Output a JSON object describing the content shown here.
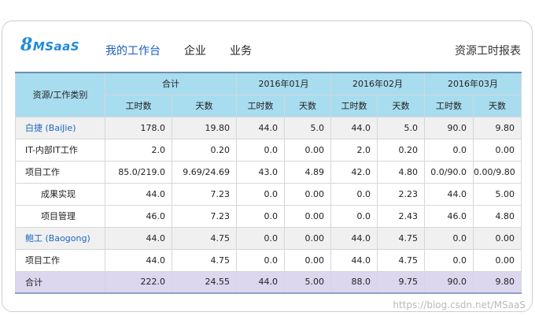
{
  "brand": {
    "logo_text_big": "8",
    "logo_text_rest": "MSaaS"
  },
  "nav": {
    "items": [
      {
        "label": "我的工作台",
        "active": true
      },
      {
        "label": "企业",
        "active": false
      },
      {
        "label": "业务",
        "active": false
      }
    ],
    "report_label": "资源工时报表"
  },
  "table": {
    "row_header": "资源/工作类别",
    "groups": [
      "合计",
      "2016年01月",
      "2016年02月",
      "2016年03月"
    ],
    "sub_headers": [
      "工时数",
      "天数",
      "工时数",
      "天数",
      "工时数",
      "天数",
      "工时数",
      "天数"
    ],
    "rows": [
      {
        "label": "白捷 (BaiJie)",
        "type": "person",
        "values": [
          "178.0",
          "19.80",
          "44.0",
          "5.0",
          "44.0",
          "5.0",
          "90.0",
          "9.80"
        ]
      },
      {
        "label": "IT-内部IT工作",
        "type": "category",
        "values": [
          "2.0",
          "0.20",
          "0.0",
          "0.00",
          "2.0",
          "0.20",
          "0.0",
          "0.00"
        ]
      },
      {
        "label": "项目工作",
        "type": "category",
        "values": [
          "85.0/219.0",
          "9.69/24.69",
          "43.0",
          "4.89",
          "42.0",
          "4.80",
          "0.0/90.0",
          "0.00/9.80"
        ]
      },
      {
        "label": "成果实现",
        "type": "sub",
        "values": [
          "44.0",
          "7.23",
          "0.0",
          "0.00",
          "0.0",
          "2.23",
          "44.0",
          "5.00"
        ]
      },
      {
        "label": "项目管理",
        "type": "sub",
        "values": [
          "46.0",
          "7.23",
          "0.0",
          "0.00",
          "0.0",
          "2.43",
          "46.0",
          "4.80"
        ]
      },
      {
        "label": "鲍工 (Baogong)",
        "type": "person",
        "values": [
          "44.0",
          "4.75",
          "0.0",
          "0.00",
          "44.0",
          "4.75",
          "0.0",
          "0.00"
        ]
      },
      {
        "label": "项目工作",
        "type": "category",
        "values": [
          "44.0",
          "4.75",
          "0.0",
          "0.00",
          "44.0",
          "4.75",
          "0.0",
          "0.00"
        ]
      },
      {
        "label": "合计",
        "type": "total",
        "values": [
          "222.0",
          "24.55",
          "44.0",
          "5.00",
          "88.0",
          "9.75",
          "90.0",
          "9.80"
        ]
      }
    ]
  },
  "watermark": "https://blog.csdn.net/MSaaS"
}
